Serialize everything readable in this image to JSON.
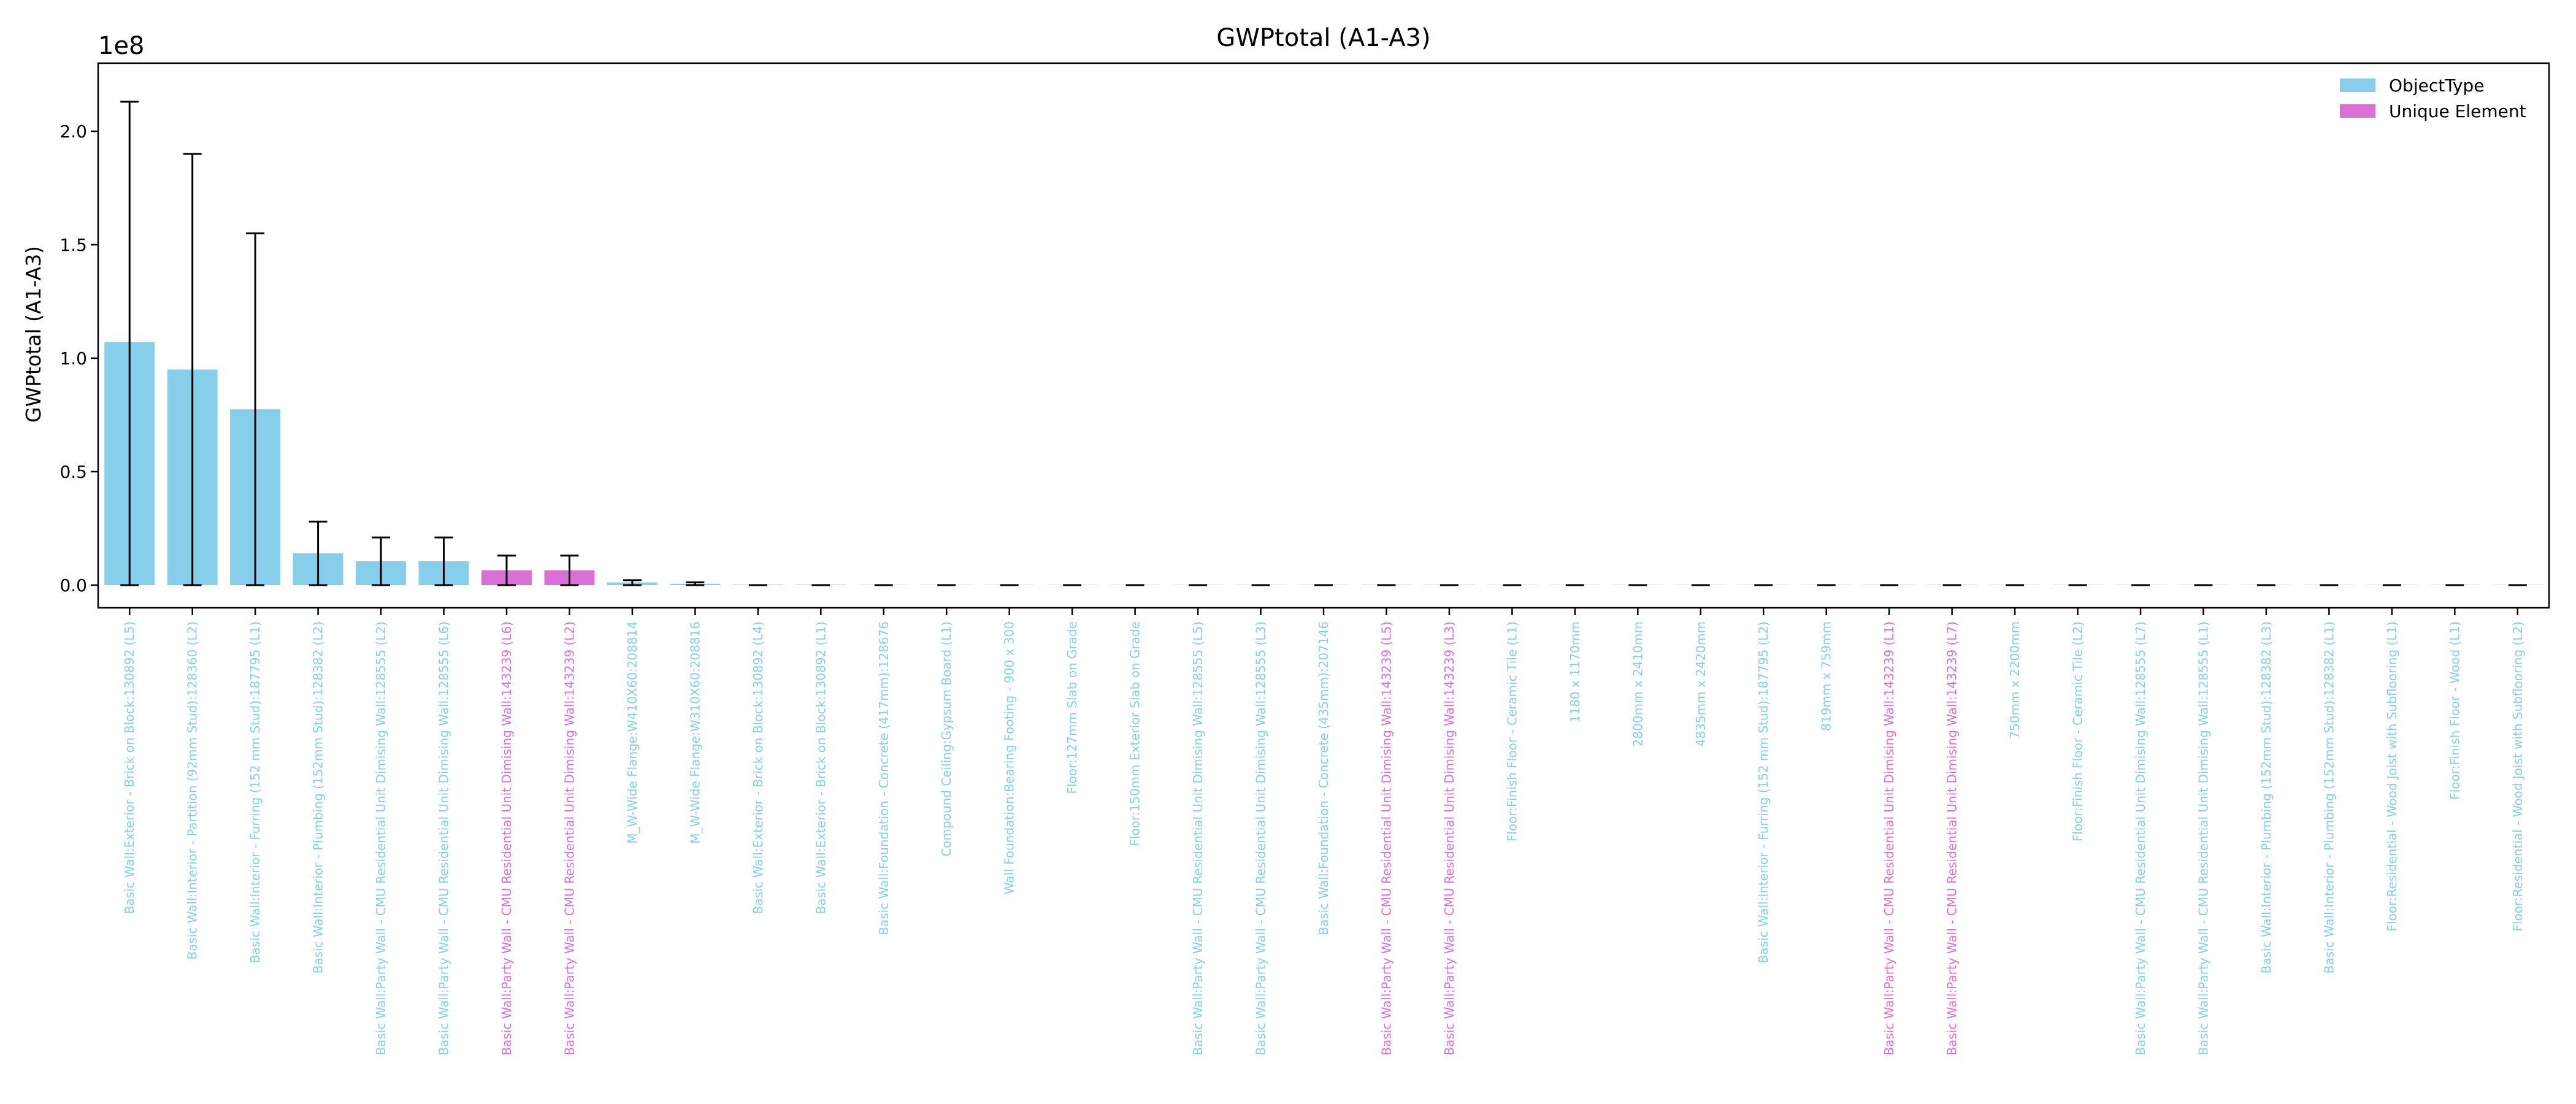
{
  "chart_data": {
    "type": "bar",
    "title": "GWPtotal (A1-A3)",
    "ylabel": "GWPtotal (A1-A3)",
    "xlabel": "",
    "y_multiplier": "1e8",
    "ylim": [
      -0.1,
      2.3
    ],
    "yticks": [
      0.0,
      0.5,
      1.0,
      1.5,
      2.0
    ],
    "ytick_labels": [
      "0.0",
      "0.5",
      "1.0",
      "1.5",
      "2.0"
    ],
    "grid": false,
    "legend_position": "top-right",
    "legend": [
      {
        "label": "ObjectType",
        "color": "#87ceeb"
      },
      {
        "label": "Unique Element",
        "color": "#da70d6"
      }
    ],
    "categories": [
      "Basic Wall:Exterior - Brick on Block:130892 (L5)",
      "Basic Wall:Interior - Partition (92mm Stud):128360 (L2)",
      "Basic Wall:Interior - Furring (152 mm Stud):187795 (L1)",
      "Basic Wall:Interior - Plumbing (152mm Stud):128382 (L2)",
      "Basic Wall:Party Wall - CMU Residential Unit Dimising Wall:128555 (L2)",
      "Basic Wall:Party Wall - CMU Residential Unit Dimising Wall:128555 (L6)",
      "Basic Wall:Party Wall - CMU Residential Unit Dimising Wall:143239 (L6)",
      "Basic Wall:Party Wall - CMU Residential Unit Dimising Wall:143239 (L2)",
      "M_W-Wide Flange:W410X60:208814",
      "M_W-Wide Flange:W310X60:208816",
      "Basic Wall:Exterior - Brick on Block:130892 (L4)",
      "Basic Wall:Exterior - Brick on Block:130892 (L1)",
      "Basic Wall:Foundation - Concrete (417mm):128676",
      "Compound Ceiling:Gypsum Board (L1)",
      "Wall Foundation:Bearing Footing - 900 x 300",
      "Floor:127mm Slab on Grade",
      "Floor:150mm Exterior Slab on Grade",
      "Basic Wall:Party Wall - CMU Residential Unit Dimising Wall:128555 (L5)",
      "Basic Wall:Party Wall - CMU Residential Unit Dimising Wall:128555 (L3)",
      "Basic Wall:Foundation - Concrete (435mm):207146",
      "Basic Wall:Party Wall - CMU Residential Unit Dimising Wall:143239 (L5)",
      "Basic Wall:Party Wall - CMU Residential Unit Dimising Wall:143239 (L3)",
      "Floor:Finish Floor - Ceramic Tile (L1)",
      "1180 x 1170mm",
      "2800mm x 2410mm",
      "4835mm x 2420mm",
      "Basic Wall:Interior - Furring (152 mm Stud):187795 (L2)",
      "819mm x 759mm",
      "Basic Wall:Party Wall - CMU Residential Unit Dimising Wall:143239 (L1)",
      "Basic Wall:Party Wall - CMU Residential Unit Dimising Wall:143239 (L7)",
      "750mm x 2200mm",
      "Floor:Finish Floor - Ceramic Tile (L2)",
      "Basic Wall:Party Wall - CMU Residential Unit Dimising Wall:128555 (L7)",
      "Basic Wall:Party Wall - CMU Residential Unit Dimising Wall:128555 (L1)",
      "Basic Wall:Interior - Plumbing (152mm Stud):128382 (L3)",
      "Basic Wall:Interior - Plumbing (152mm Stud):128382 (L1)",
      "Floor:Residential - Wood Joist with Subflooring (L1)",
      "Floor:Finish Floor - Wood (L1)",
      "Floor:Residential - Wood Joist with Subflooring (L2)"
    ],
    "values": [
      1.07,
      0.95,
      0.775,
      0.14,
      0.105,
      0.105,
      0.065,
      0.065,
      0.012,
      0.006,
      0.002,
      0.002,
      0.001,
      0.001,
      0.001,
      0.001,
      0.001,
      0.001,
      0.001,
      0.001,
      0.001,
      0.001,
      0.001,
      0.001,
      0.001,
      0.001,
      0.001,
      0.001,
      0.001,
      0.001,
      0.001,
      0.001,
      0.001,
      0.001,
      0.001,
      0.001,
      0.001,
      0.001,
      0.001
    ],
    "error_upper": [
      2.13,
      1.9,
      1.55,
      0.28,
      0.21,
      0.21,
      0.13,
      0.13,
      0.022,
      0.012,
      0.0,
      0.0,
      0.0,
      0.0,
      0.0,
      0.0,
      0.0,
      0.0,
      0.0,
      0.0,
      0.0,
      0.0,
      0.0,
      0.0,
      0.0,
      0.0,
      0.0,
      0.0,
      0.0,
      0.0,
      0.0,
      0.0,
      0.0,
      0.0,
      0.0,
      0.0,
      0.0,
      0.0,
      0.0
    ],
    "error_lower": [
      0.0,
      0.0,
      0.0,
      0.0,
      0.0,
      0.0,
      0.0,
      0.0,
      0.0,
      0.0,
      0.0,
      0.0,
      0.0,
      0.0,
      0.0,
      0.0,
      0.0,
      0.0,
      0.0,
      0.0,
      0.0,
      0.0,
      0.0,
      0.0,
      0.0,
      0.0,
      0.0,
      0.0,
      0.0,
      0.0,
      0.0,
      0.0,
      0.0,
      0.0,
      0.0,
      0.0,
      0.0,
      0.0,
      0.0
    ],
    "groups": [
      "ObjectType",
      "ObjectType",
      "ObjectType",
      "ObjectType",
      "ObjectType",
      "ObjectType",
      "Unique Element",
      "Unique Element",
      "ObjectType",
      "ObjectType",
      "ObjectType",
      "ObjectType",
      "ObjectType",
      "ObjectType",
      "ObjectType",
      "ObjectType",
      "ObjectType",
      "ObjectType",
      "ObjectType",
      "ObjectType",
      "Unique Element",
      "Unique Element",
      "ObjectType",
      "ObjectType",
      "ObjectType",
      "ObjectType",
      "ObjectType",
      "ObjectType",
      "Unique Element",
      "Unique Element",
      "ObjectType",
      "ObjectType",
      "ObjectType",
      "ObjectType",
      "ObjectType",
      "ObjectType",
      "ObjectType",
      "ObjectType",
      "ObjectType"
    ]
  }
}
